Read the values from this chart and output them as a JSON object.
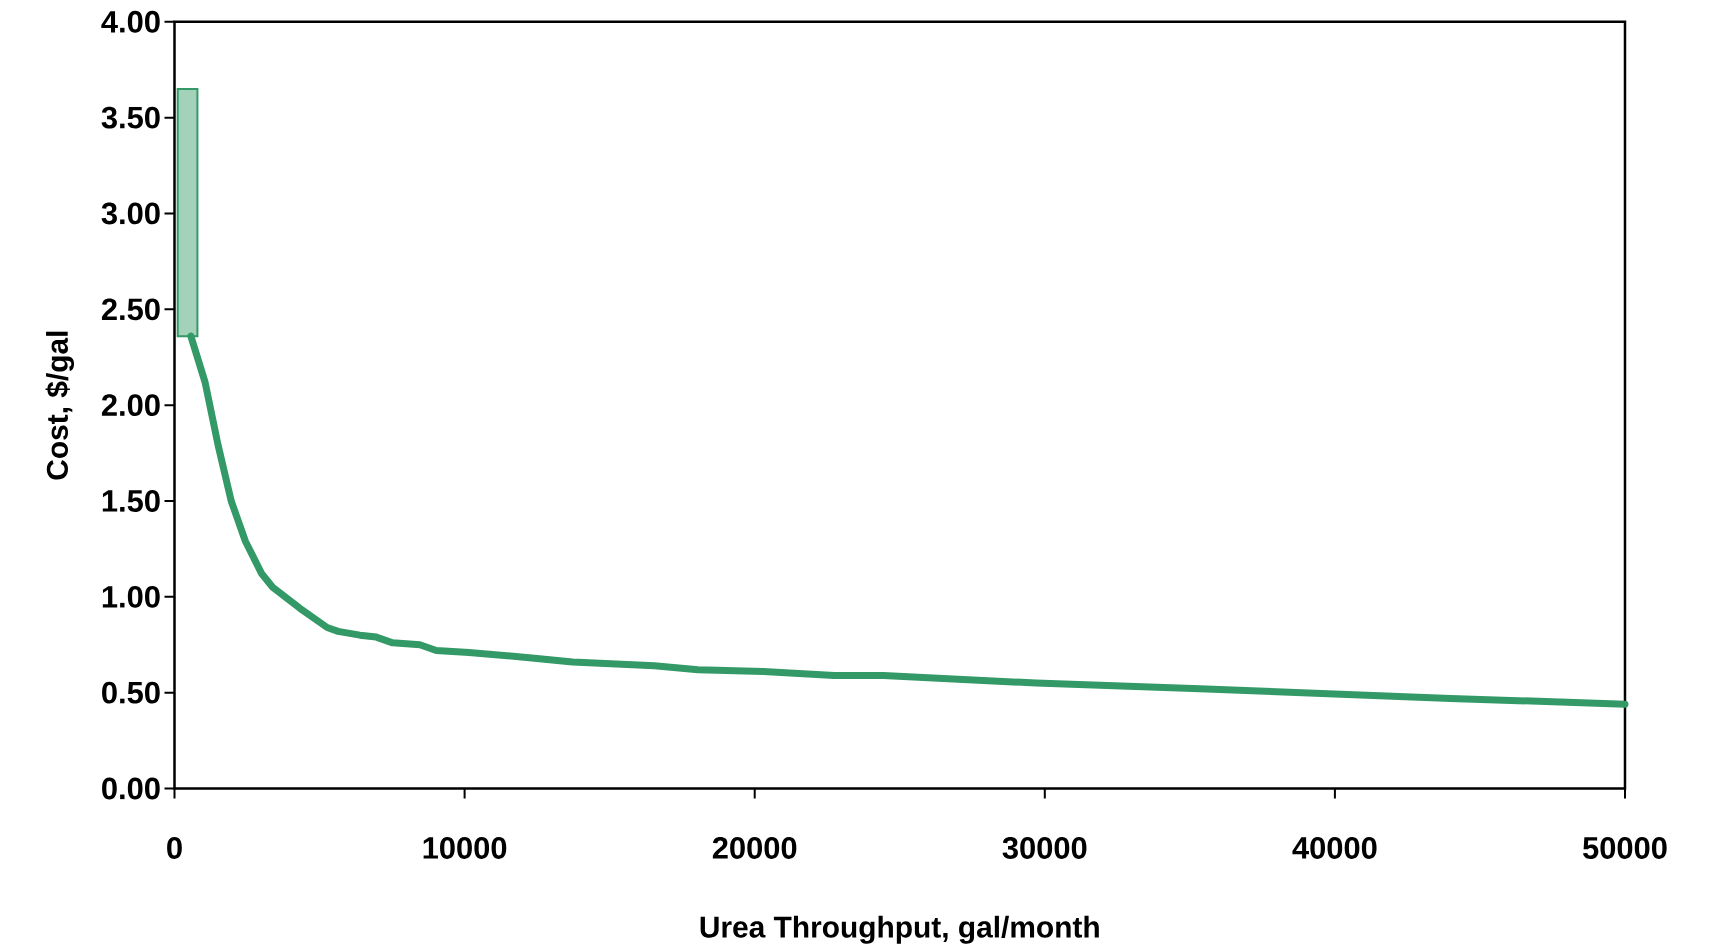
{
  "chart_data": {
    "type": "line",
    "xlabel": "Urea Throughput, gal/month",
    "ylabel": "Cost, $/gal",
    "xlim": [
      0,
      50000
    ],
    "ylim": [
      0,
      4
    ],
    "xticks": [
      0,
      10000,
      20000,
      30000,
      40000,
      50000
    ],
    "yticks": [
      {
        "value": 0,
        "label": "0.00"
      },
      {
        "value": 0.5,
        "label": "0.50"
      },
      {
        "value": 1,
        "label": "1.00"
      },
      {
        "value": 1.5,
        "label": "1.50"
      },
      {
        "value": 2,
        "label": "2.00"
      },
      {
        "value": 2.5,
        "label": "2.50"
      },
      {
        "value": 3,
        "label": "3.00"
      },
      {
        "value": 3.5,
        "label": "3.50"
      },
      {
        "value": 4,
        "label": "4.00"
      }
    ],
    "grid": false,
    "series": [
      {
        "type": "bar",
        "color": "#339966",
        "x": [
          450
        ],
        "base": [
          2.36
        ],
        "values": [
          1.29
        ]
      },
      {
        "color": "#339966",
        "x": [
          564,
          1053,
          1504,
          1955,
          2444,
          3008,
          3383,
          4323,
          5263,
          5639,
          6391,
          6955,
          7519,
          8459,
          9023,
          10150,
          12406,
          13722,
          16541,
          18045,
          20300,
          22744,
          24436,
          29699,
          35338,
          43985,
          50000
        ],
        "values": [
          2.36,
          2.12,
          1.79,
          1.5,
          1.29,
          1.12,
          1.05,
          0.94,
          0.84,
          0.82,
          0.8,
          0.79,
          0.76,
          0.75,
          0.72,
          0.71,
          0.68,
          0.66,
          0.64,
          0.62,
          0.61,
          0.59,
          0.59,
          0.55,
          0.52,
          0.47,
          0.44
        ]
      }
    ]
  }
}
